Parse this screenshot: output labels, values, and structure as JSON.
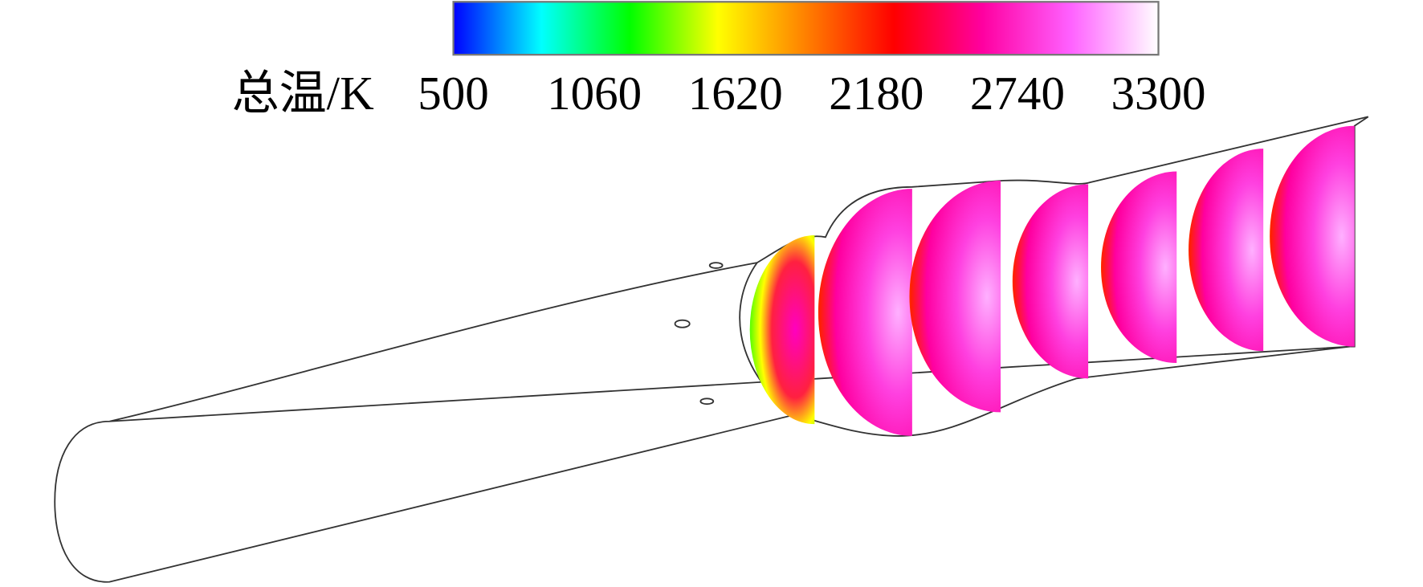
{
  "colorbar": {
    "label": "总温/K",
    "lim": [
      500,
      3300
    ],
    "ticks": [
      500,
      1060,
      1620,
      2180,
      2740,
      3300
    ],
    "colors": [
      "#0000ff",
      "#00ffff",
      "#00ff00",
      "#ffff00",
      "#ff8000",
      "#ff0000",
      "#ff00a0",
      "#ff60ff",
      "#ffffff"
    ]
  }
}
